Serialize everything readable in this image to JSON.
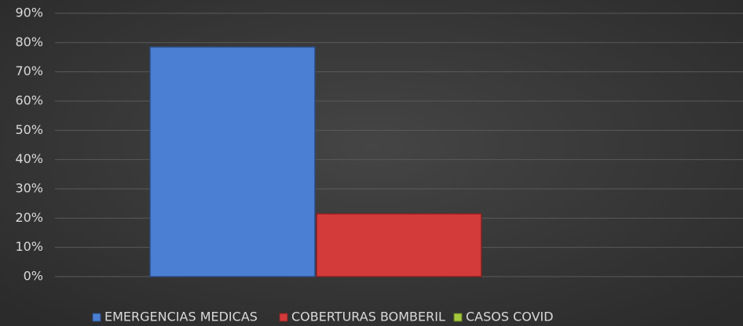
{
  "chart_data": {
    "type": "bar",
    "categories": [
      null
    ],
    "series": [
      {
        "name": "EMERGENCIAS MEDICAS",
        "color": "#4a7fd4",
        "values": [
          78.5
        ]
      },
      {
        "name": "COBERTURAS BOMBERIL",
        "color": "#d33a3a",
        "values": [
          21.5
        ]
      },
      {
        "name": "CASOS COVID",
        "color": "#a4c93c",
        "values": [
          0
        ]
      }
    ],
    "ylim": [
      0,
      90
    ],
    "yticks": [
      {
        "value": 0,
        "label": "0%"
      },
      {
        "value": 10,
        "label": "10%"
      },
      {
        "value": 20,
        "label": "20%"
      },
      {
        "value": 30,
        "label": "30%"
      },
      {
        "value": 40,
        "label": "40%"
      },
      {
        "value": 50,
        "label": "50%"
      },
      {
        "value": 60,
        "label": "60%"
      },
      {
        "value": 70,
        "label": "70%"
      },
      {
        "value": 80,
        "label": "80%"
      },
      {
        "value": 90,
        "label": "90%"
      }
    ],
    "grid": true,
    "legend": "bottom"
  }
}
